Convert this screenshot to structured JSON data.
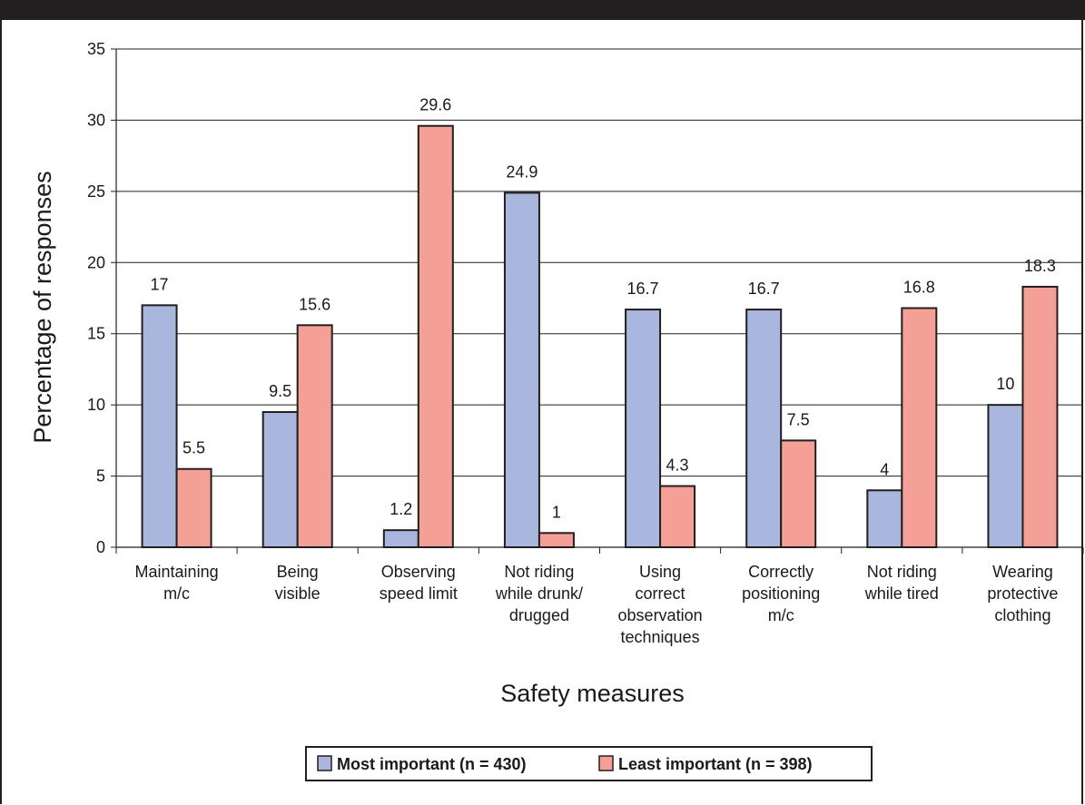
{
  "chart_data": {
    "type": "bar",
    "categories": [
      [
        "Maintaining",
        "m/c"
      ],
      [
        "Being",
        "visible"
      ],
      [
        "Observing",
        "speed limit"
      ],
      [
        "Not riding",
        "while drunk/",
        "drugged"
      ],
      [
        "Using",
        "correct",
        "observation",
        "techniques"
      ],
      [
        "Correctly",
        "positioning",
        "m/c"
      ],
      [
        "Not riding",
        "while tired"
      ],
      [
        "Wearing",
        "protective",
        "clothing"
      ]
    ],
    "series": [
      {
        "name": "Most important (n = 430)",
        "values": [
          17,
          9.5,
          1.2,
          24.9,
          16.7,
          16.7,
          4,
          10
        ],
        "labels": [
          "17",
          "9.5",
          "1.2",
          "24.9",
          "16.7",
          "16.7",
          "4",
          "10"
        ],
        "color": "#a9b6dd"
      },
      {
        "name": "Least important (n = 398)",
        "values": [
          5.5,
          15.6,
          29.6,
          1,
          4.3,
          7.5,
          16.8,
          18.3
        ],
        "labels": [
          "5.5",
          "15.6",
          "29.6",
          "1",
          "4.3",
          "7.5",
          "16.8",
          "18.3"
        ],
        "color": "#f4a097"
      }
    ],
    "title": "",
    "xlabel": "Safety measures",
    "ylabel": "Percentage of responses",
    "ylim": [
      0,
      35
    ],
    "yticks": [
      "0",
      "5",
      "10",
      "15",
      "20",
      "25",
      "30",
      "35"
    ],
    "grid": true,
    "legend": "bottom"
  }
}
